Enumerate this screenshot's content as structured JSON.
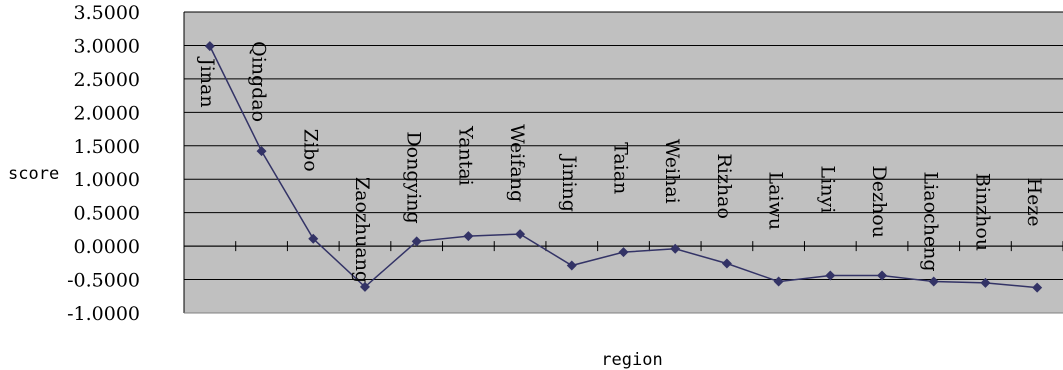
{
  "chart_data": {
    "type": "line",
    "title": "",
    "xlabel": "region",
    "ylabel": "score",
    "ylim": [
      -1.0,
      3.5
    ],
    "ytick_step": 0.5,
    "ytick_labels": [
      "3.5000",
      "3.0000",
      "2.5000",
      "2.0000",
      "1.5000",
      "1.0000",
      "0.5000",
      "0.0000",
      "-0.5000",
      "-1.0000"
    ],
    "grid": true,
    "legend": "none",
    "categories": [
      "Jinan",
      "Qingdao",
      "Zibo",
      "Zaozhuang",
      "Dongying",
      "Yantai",
      "Weifang",
      "Jining",
      "Taian",
      "Weihai",
      "Rizhao",
      "Laiwu",
      "Linyi",
      "Dezhou",
      "Liaocheng",
      "Binzhou",
      "Heze"
    ],
    "series": [
      {
        "values": [
          2.99,
          1.42,
          0.11,
          -0.61,
          0.07,
          0.15,
          0.18,
          -0.29,
          -0.09,
          -0.04,
          -0.26,
          -0.53,
          -0.44,
          -0.44,
          -0.53,
          -0.55,
          -0.62
        ]
      }
    ],
    "colors": {
      "plot_background": "#c0c0c0",
      "gridline": "#000000",
      "line": "#333366",
      "marker": "#333366"
    }
  }
}
